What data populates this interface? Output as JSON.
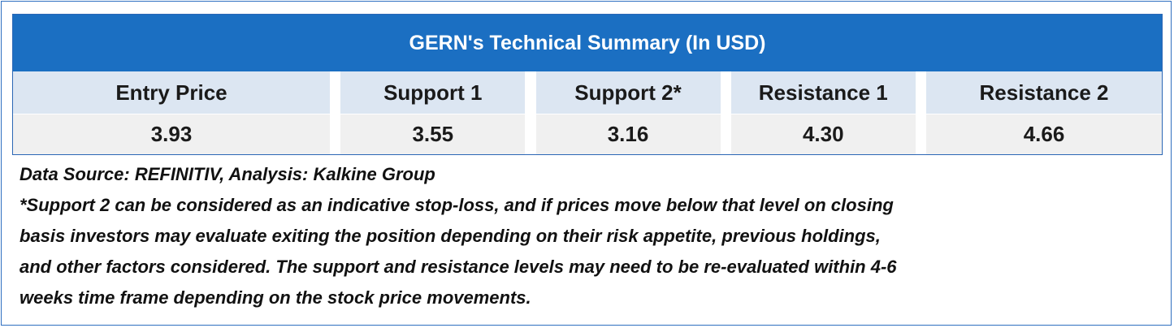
{
  "table": {
    "title": "GERN's Technical Summary (In USD)",
    "headers": [
      "Entry Price",
      "Support 1",
      "Support 2*",
      "Resistance 1",
      "Resistance 2"
    ],
    "rows": [
      [
        "3.93",
        "3.55",
        "3.16",
        "4.30",
        "4.66"
      ]
    ]
  },
  "notes": {
    "source": "Data Source: REFINITIV, Analysis: Kalkine Group",
    "lines": [
      "*Support 2 can be considered as an indicative stop-loss, and if prices move below that level on closing",
      "basis investors may evaluate exiting the position depending on their risk appetite, previous holdings,",
      "and other factors considered. The support and resistance levels may need to be re-evaluated within 4-6",
      "weeks time frame depending on the stock price movements."
    ]
  }
}
